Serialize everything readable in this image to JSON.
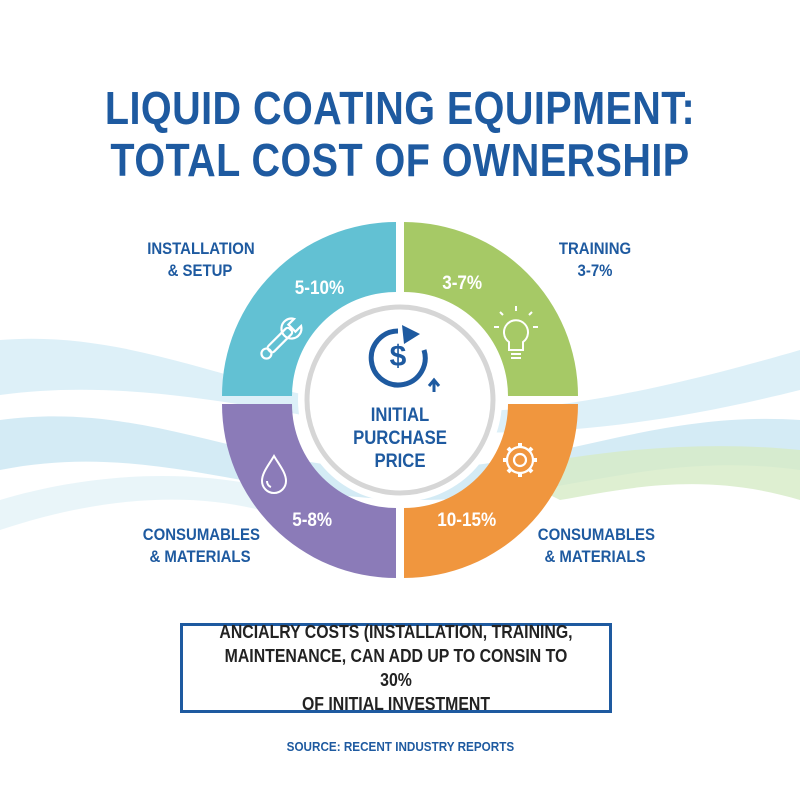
{
  "title": {
    "line1": "LIQUID COATING EQUIPMENT:",
    "line2": "TOTAL COST OF OWNERSHIP"
  },
  "center": {
    "label_lines": [
      "INITIAL",
      "PURCHASE",
      "PRICE"
    ],
    "icon": "dollar-cycle-up-arrow-icon"
  },
  "segments": [
    {
      "label_lines": [
        "INSTALLATION",
        "& SETUP"
      ],
      "value": "5-10%",
      "color": "#62c1d3",
      "icon": "wrench-icon"
    },
    {
      "label_lines": [
        "TRAINING",
        "3-7%"
      ],
      "value": "3-7%",
      "color": "#a6c966",
      "icon": "lightbulb-icon"
    },
    {
      "label_lines": [
        "CONSUMABLES",
        "& MATERIALS"
      ],
      "value": "10-15%",
      "color": "#f0963e",
      "icon": "gear-icon"
    },
    {
      "label_lines": [
        "CONSUMABLES",
        "& MATERIALS"
      ],
      "value": "5-8%",
      "color": "#8b7bb8",
      "icon": "droplet-icon"
    }
  ],
  "note": {
    "lines": [
      "ANCIALRY COSTS (INSTALLATION, TRAINING,",
      "MAINTENANCE, CAN ADD UP TO CONSIN TO 30%",
      "OF INITIAL INVESTMENT"
    ]
  },
  "source": "SOURCE: RECENT INDUSTRY REPORTS",
  "colors": {
    "primary": "#1e5aa0",
    "wave_blue": "#bfe3f2",
    "wave_green": "#d6ebc6"
  }
}
